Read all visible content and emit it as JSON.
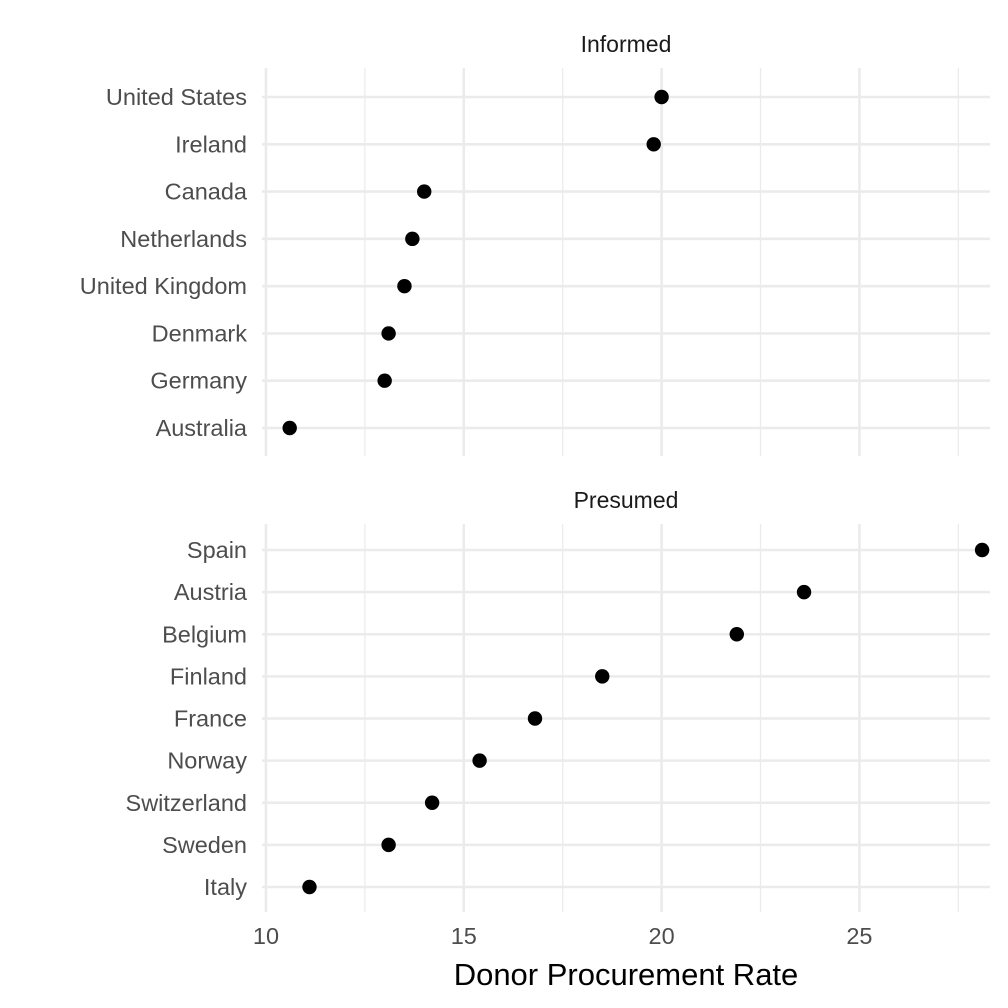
{
  "chart_data": {
    "type": "scatter",
    "xlabel": "Donor Procurement Rate",
    "xlim": [
      9.9,
      28.3
    ],
    "x_ticks": [
      10,
      15,
      20,
      25
    ],
    "grid": true,
    "point_color": "#000000",
    "facets": [
      {
        "title": "Informed",
        "categories": [
          "United States",
          "Ireland",
          "Canada",
          "Netherlands",
          "United Kingdom",
          "Denmark",
          "Germany",
          "Australia"
        ],
        "values": [
          20.0,
          19.8,
          14.0,
          13.7,
          13.5,
          13.1,
          13.0,
          10.6
        ]
      },
      {
        "title": "Presumed",
        "categories": [
          "Spain",
          "Austria",
          "Belgium",
          "Finland",
          "France",
          "Norway",
          "Switzerland",
          "Sweden",
          "Italy"
        ],
        "values": [
          28.1,
          23.6,
          21.9,
          18.5,
          16.8,
          15.4,
          14.2,
          13.1,
          11.1
        ]
      }
    ]
  }
}
